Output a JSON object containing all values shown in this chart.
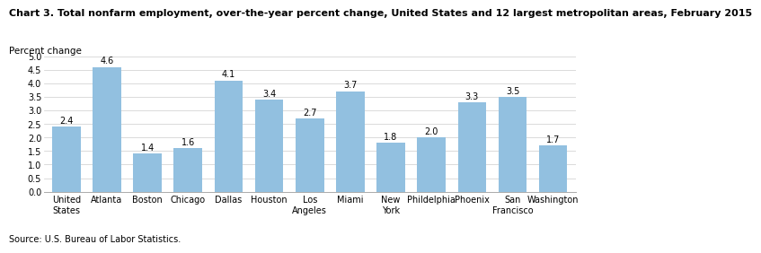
{
  "title": "Chart 3. Total nonfarm employment, over-the-year percent change, United States and 12 largest metropolitan areas, February 2015",
  "ylabel": "Percent change",
  "source": "Source: U.S. Bureau of Labor Statistics.",
  "categories": [
    "United\nStates",
    "Atlanta",
    "Boston",
    "Chicago",
    "Dallas",
    "Houston",
    "Los\nAngeles",
    "Miami",
    "New\nYork",
    "Phildelphia",
    "Phoenix",
    "San\nFrancisco",
    "Washington"
  ],
  "values": [
    2.4,
    4.6,
    1.4,
    1.6,
    4.1,
    3.4,
    2.7,
    3.7,
    1.8,
    2.0,
    3.3,
    3.5,
    1.7
  ],
  "bar_color": "#92C0E0",
  "ylim": [
    0.0,
    5.0
  ],
  "yticks": [
    0.0,
    0.5,
    1.0,
    1.5,
    2.0,
    2.5,
    3.0,
    3.5,
    4.0,
    4.5,
    5.0
  ],
  "title_fontsize": 8.0,
  "label_fontsize": 7.5,
  "tick_fontsize": 7.0,
  "value_fontsize": 7.0,
  "source_fontsize": 7.0
}
